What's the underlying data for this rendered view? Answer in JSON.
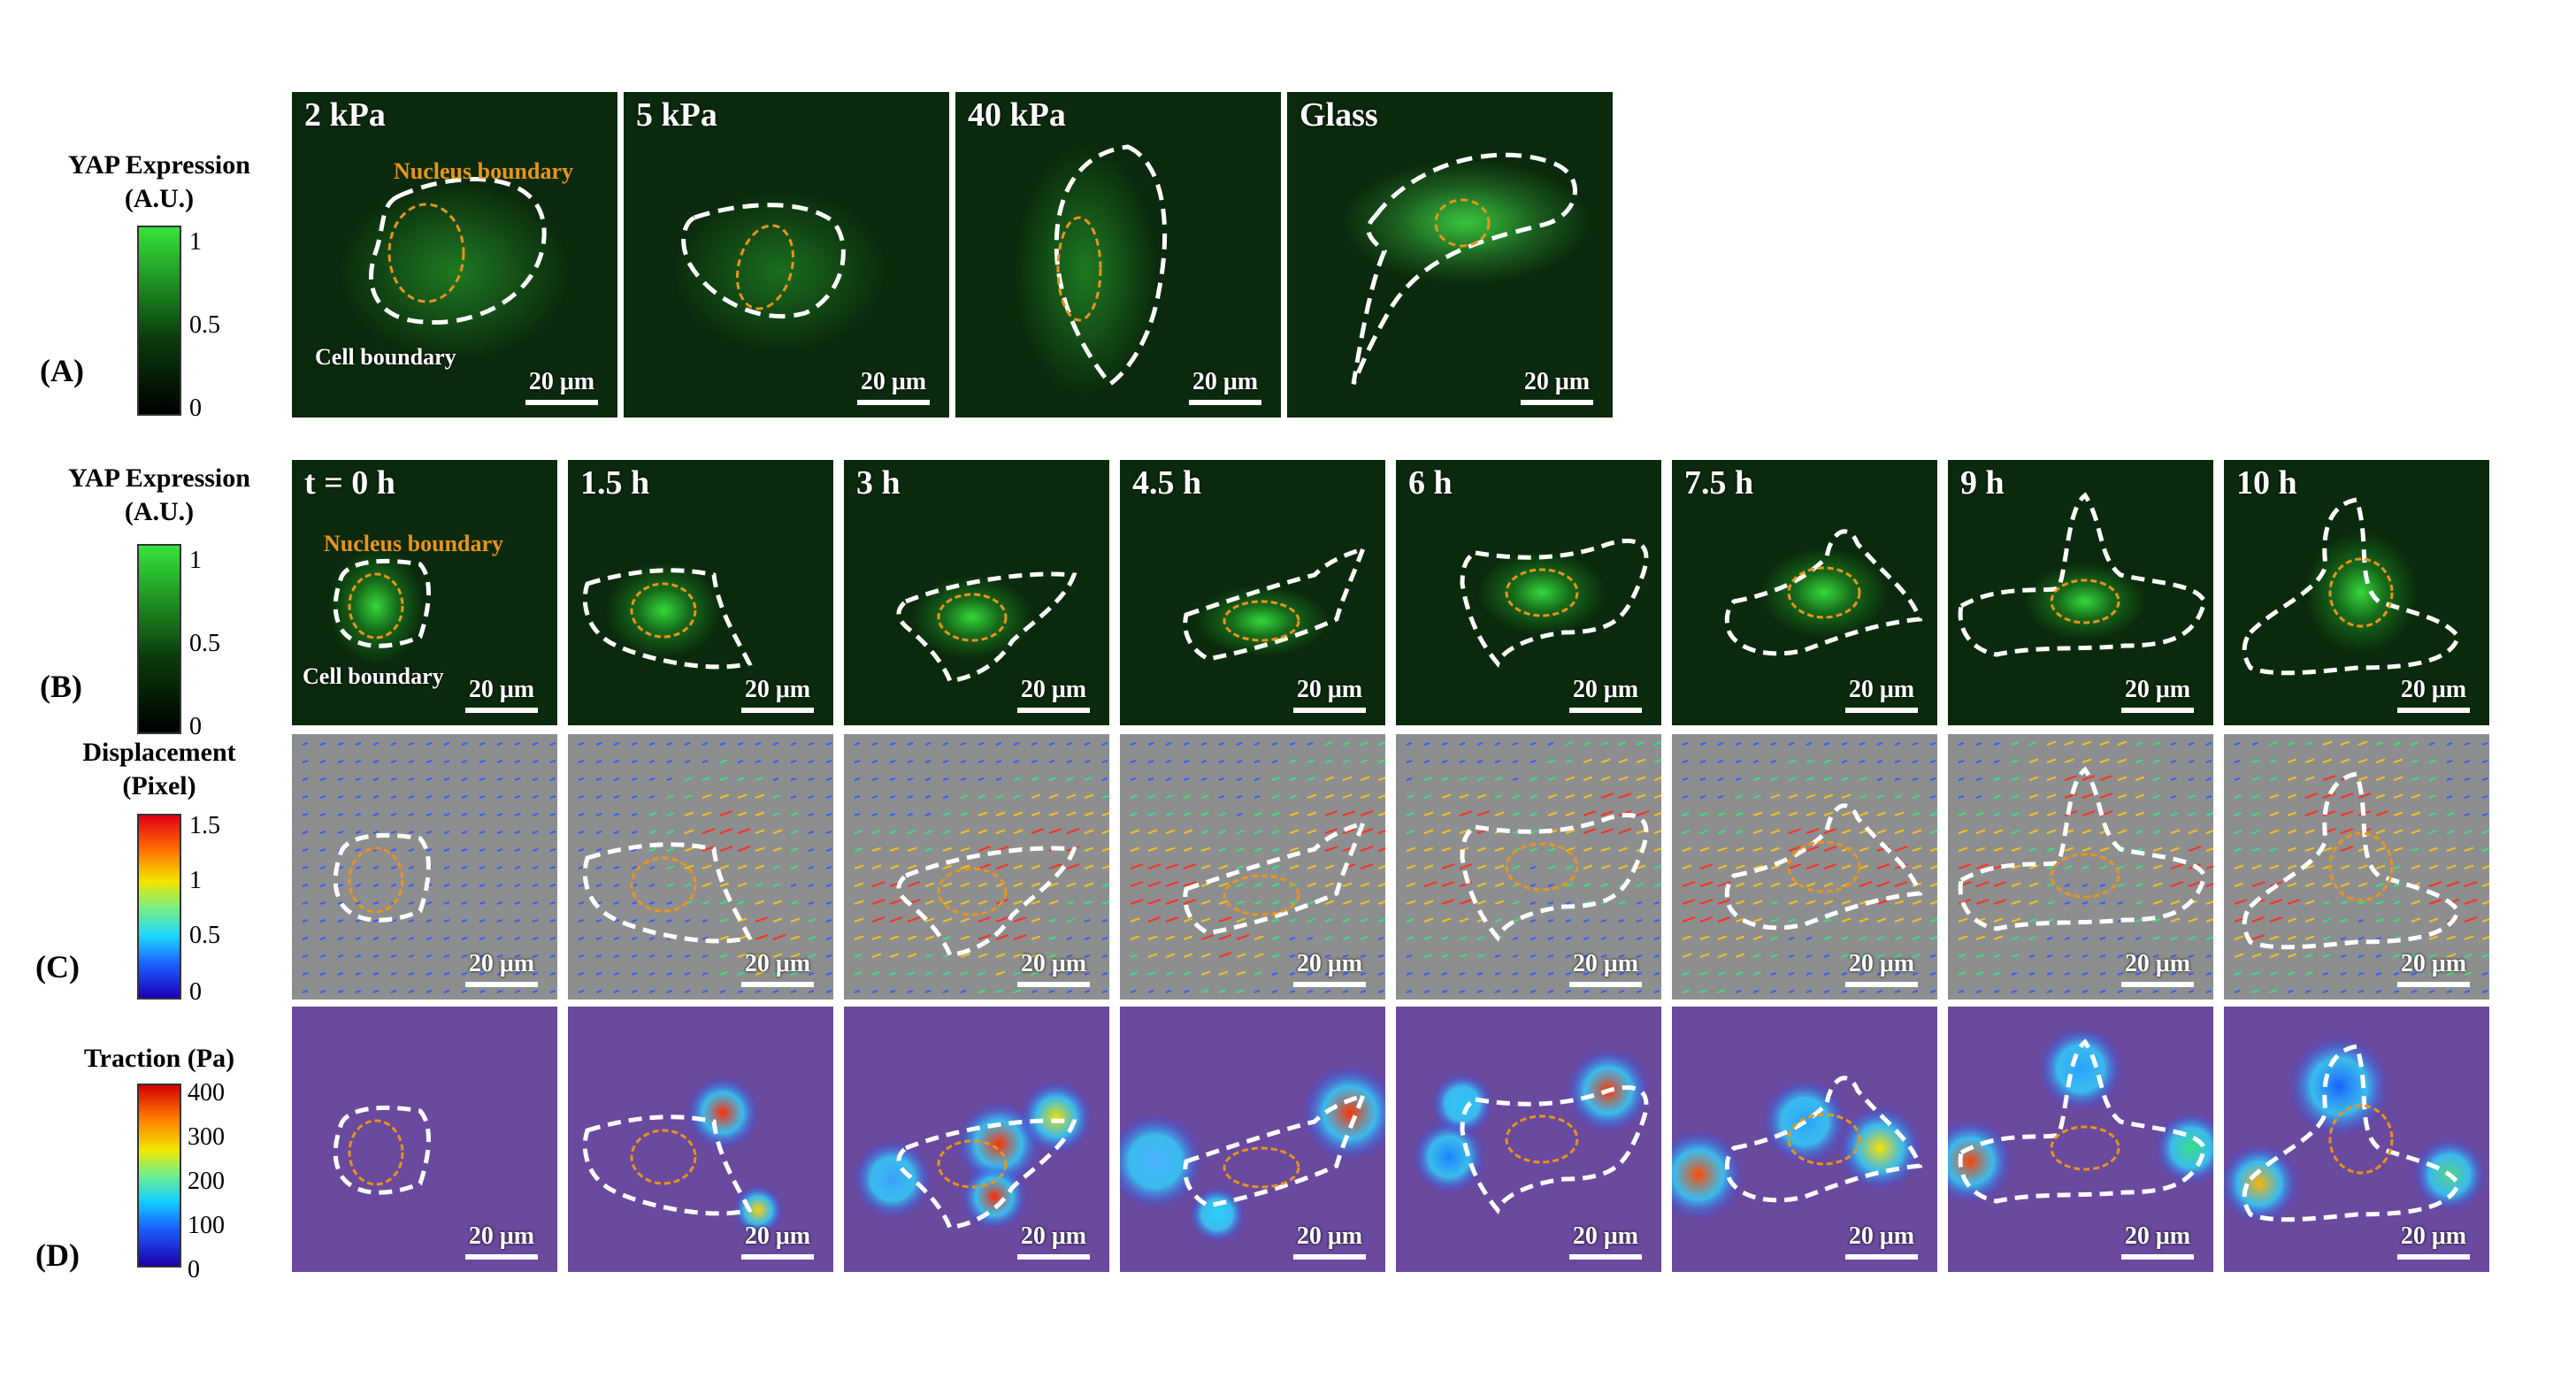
{
  "legends": {
    "yap_a": {
      "title_l1": "YAP Expression",
      "title_l2": "(A.U.)",
      "ticks": [
        "1",
        "0.5",
        "0"
      ]
    },
    "yap_b": {
      "title_l1": "YAP Expression",
      "title_l2": "(A.U.)",
      "ticks": [
        "1",
        "0.5",
        "0"
      ]
    },
    "displacement": {
      "title_l1": "Displacement",
      "title_l2": "(Pixel)",
      "ticks": [
        "1.5",
        "1",
        "0.5",
        "0"
      ]
    },
    "traction": {
      "title_l1": "Traction  (Pa)",
      "ticks": [
        "400",
        "300",
        "200",
        "100",
        "0"
      ]
    }
  },
  "row_labels": [
    "(A)",
    "(B)",
    "(C)",
    "(D)"
  ],
  "row_a": {
    "panels": [
      {
        "title": "2 kPa",
        "scale": "20 μm",
        "nucleus_label": "Nucleus boundary",
        "cell_label": "Cell boundary"
      },
      {
        "title": "5 kPa",
        "scale": "20 μm"
      },
      {
        "title": "40 kPa",
        "scale": "20 μm"
      },
      {
        "title": "Glass",
        "scale": "20 μm"
      }
    ]
  },
  "row_b": {
    "nucleus_label": "Nucleus boundary",
    "cell_label": "Cell boundary",
    "panels": [
      {
        "title": "t = 0 h",
        "scale": "20 μm"
      },
      {
        "title": "1.5 h",
        "scale": "20 μm"
      },
      {
        "title": "3 h",
        "scale": "20 μm"
      },
      {
        "title": "4.5 h",
        "scale": "20 μm"
      },
      {
        "title": "6 h",
        "scale": "20 μm"
      },
      {
        "title": "7.5 h",
        "scale": "20 μm"
      },
      {
        "title": "9 h",
        "scale": "20 μm"
      },
      {
        "title": "10 h",
        "scale": "20 μm"
      }
    ]
  },
  "row_c": {
    "scale": "20 μm"
  },
  "row_d": {
    "scale": "20 μm"
  },
  "colors": {
    "cell_boundary": "#ffffff",
    "nucleus_boundary": "#e8941a",
    "yap_max": "#2ee33a",
    "background_fluor": "#0b2a0d"
  }
}
